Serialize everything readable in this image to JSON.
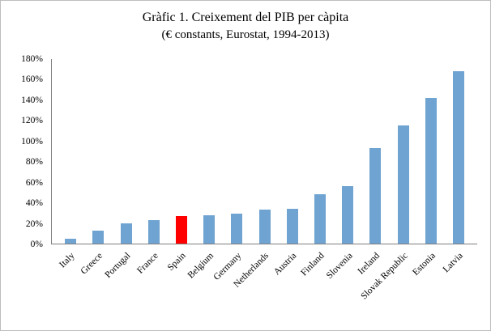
{
  "title": {
    "line1": "Gràfic 1. Creixement del PIB per càpita",
    "line2": "(€ constants, Eurostat, 1994-2013)"
  },
  "chart_data": {
    "type": "bar",
    "title": "Gràfic 1. Creixement del PIB per càpita",
    "subtitle": "(€ constants, Eurostat, 1994-2013)",
    "categories": [
      "Italy",
      "Greece",
      "Portugal",
      "France",
      "Spain",
      "Belgium",
      "Germany",
      "Netherlands",
      "Austria",
      "Finland",
      "Slovenia",
      "Ireland",
      "Slovak Republic",
      "Estonia",
      "Latvia"
    ],
    "values": [
      5,
      13,
      20,
      23,
      27,
      28,
      29,
      33,
      34,
      48,
      56,
      93,
      115,
      142,
      168
    ],
    "value_unit": "%",
    "xlabel": "",
    "ylabel": "",
    "ylim": [
      0,
      180
    ],
    "ytick_step": 20,
    "ytick_suffix": "%",
    "grid": false,
    "legend": "none",
    "bar_color": "#6fa3d1",
    "highlight_category": "Spain",
    "highlight_color": "#ff0000"
  }
}
